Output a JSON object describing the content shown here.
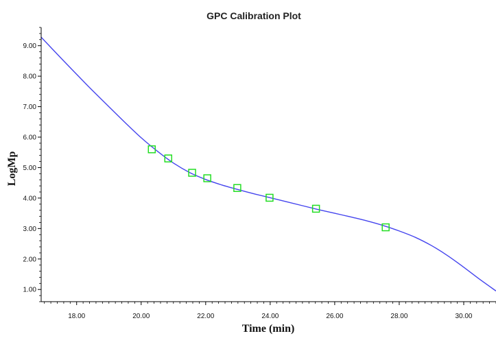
{
  "chart_data": {
    "type": "scatter",
    "title": "GPC Calibration Plot",
    "xlabel": "Time (min)",
    "ylabel": "LogMp",
    "xlim": [
      16.9,
      31.0
    ],
    "ylim": [
      0.6,
      9.6
    ],
    "x_ticks": [
      "18.00",
      "20.00",
      "22.00",
      "24.00",
      "26.00",
      "28.00",
      "30.00"
    ],
    "y_ticks": [
      "1.00",
      "2.00",
      "3.00",
      "4.00",
      "5.00",
      "6.00",
      "7.00",
      "8.00",
      "9.00"
    ],
    "grid": false,
    "series": [
      {
        "kind": "points",
        "marker": "square",
        "color": "#22dd22",
        "x": [
          20.33,
          20.84,
          21.58,
          22.05,
          22.98,
          23.98,
          25.42,
          27.58
        ],
        "y": [
          5.6,
          5.3,
          4.83,
          4.65,
          4.33,
          4.01,
          3.65,
          3.04
        ]
      },
      {
        "kind": "fit-curve",
        "color": "#4444ee",
        "x": [
          16.9,
          17.5,
          18.0,
          18.5,
          19.0,
          19.5,
          20.0,
          20.5,
          21.0,
          21.5,
          22.0,
          22.5,
          23.0,
          23.5,
          24.0,
          24.5,
          25.0,
          25.5,
          26.0,
          26.5,
          27.0,
          27.5,
          28.0,
          28.5,
          29.0,
          29.5,
          30.0,
          30.5,
          31.0
        ],
        "y": [
          9.28,
          8.61,
          8.06,
          7.52,
          7.0,
          6.48,
          5.98,
          5.54,
          5.15,
          4.84,
          4.61,
          4.43,
          4.28,
          4.14,
          4.01,
          3.88,
          3.75,
          3.62,
          3.5,
          3.38,
          3.25,
          3.1,
          2.92,
          2.71,
          2.44,
          2.11,
          1.73,
          1.33,
          0.95
        ]
      }
    ]
  }
}
